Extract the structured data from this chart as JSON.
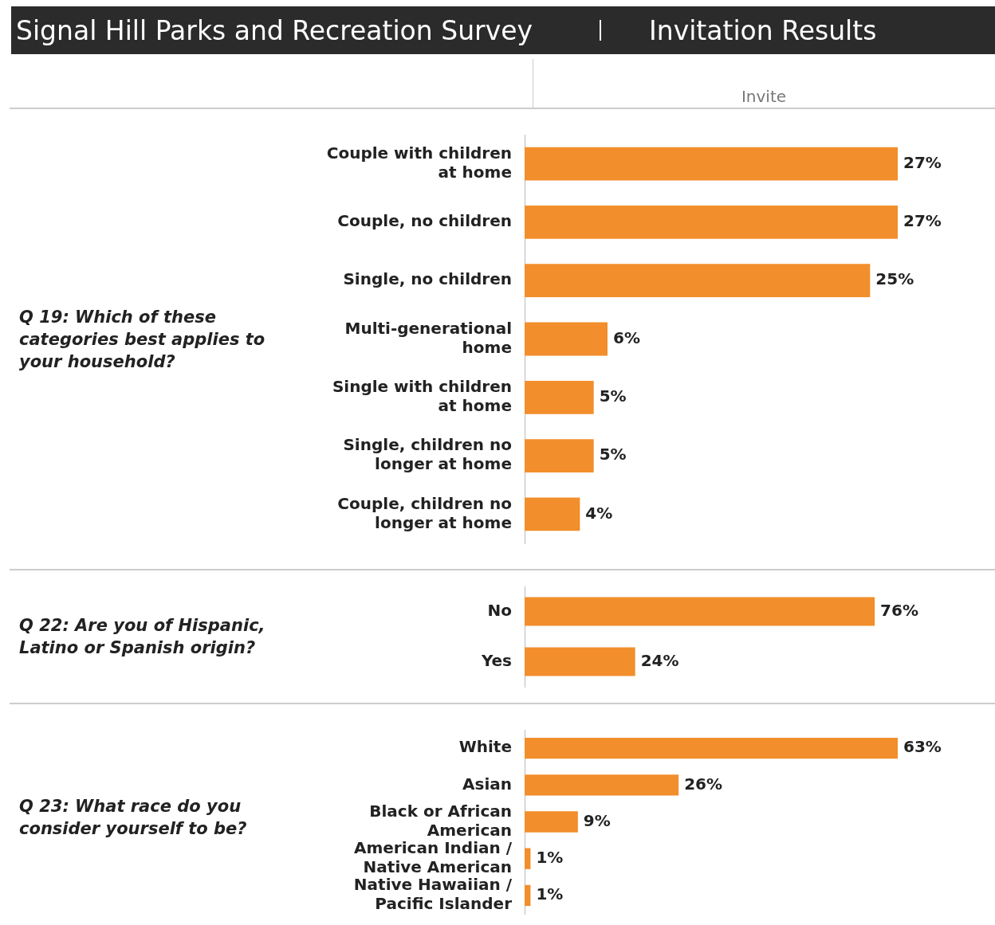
{
  "chart_data": [
    {
      "type": "bar",
      "orientation": "horizontal",
      "title": "Signal Hill Parks and Recreation Survey",
      "subtitle": "Invitation Results",
      "xlabel": "Invite",
      "ylabel": "Q 19: Which of these categories best applies to your household?",
      "categories": [
        "Couple with children at home",
        "Couple, no children",
        "Single, no children",
        "Multi-generational home",
        "Single with children at home",
        "Single, children no longer at home",
        "Couple, children no longer at home"
      ],
      "values": [
        27,
        27,
        25,
        6,
        5,
        5,
        4
      ],
      "value_labels": [
        "27%",
        "27%",
        "25%",
        "6%",
        "5%",
        "5%",
        "4%"
      ],
      "color": "#f28e2b"
    },
    {
      "type": "bar",
      "orientation": "horizontal",
      "ylabel": "Q 22: Are you of Hispanic, Latino or Spanish origin?",
      "categories": [
        "No",
        "Yes"
      ],
      "values": [
        76,
        24
      ],
      "value_labels": [
        "76%",
        "24%"
      ],
      "color": "#f28e2b"
    },
    {
      "type": "bar",
      "orientation": "horizontal",
      "ylabel": "Q 23: What race do you consider yourself to be?",
      "categories": [
        "White",
        "Asian",
        "Black or African American",
        "American Indian / Native American",
        "Native Hawaiian / Pacific Islander"
      ],
      "values": [
        63,
        26,
        9,
        1,
        1
      ],
      "value_labels": [
        "63%",
        "26%",
        "9%",
        "1%",
        "1%"
      ],
      "color": "#f28e2b"
    }
  ]
}
